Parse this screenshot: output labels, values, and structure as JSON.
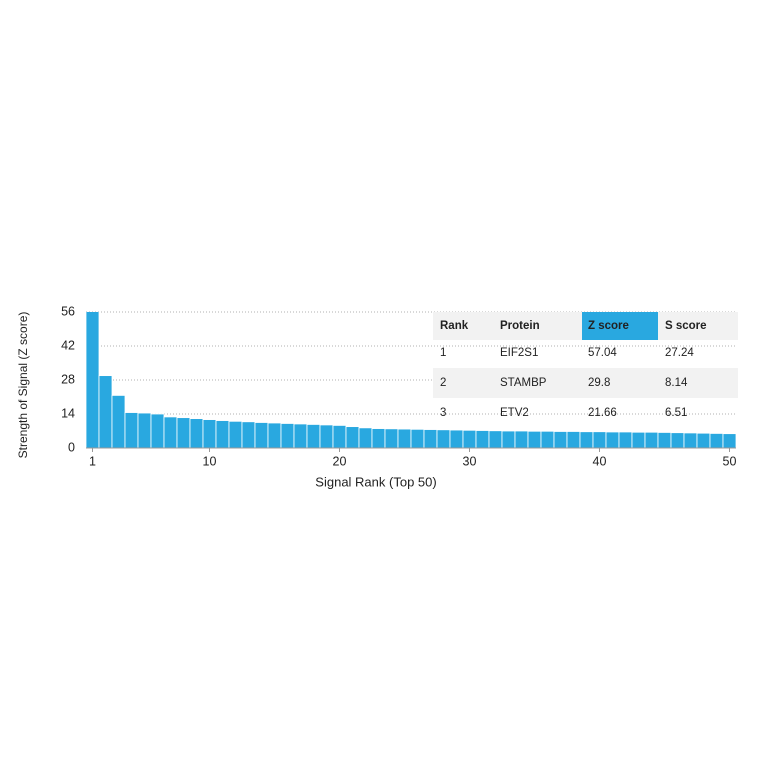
{
  "chart_data": {
    "type": "bar",
    "x": [
      1,
      2,
      3,
      4,
      5,
      6,
      7,
      8,
      9,
      10,
      11,
      12,
      13,
      14,
      15,
      16,
      17,
      18,
      19,
      20,
      21,
      22,
      23,
      24,
      25,
      26,
      27,
      28,
      29,
      30,
      31,
      32,
      33,
      34,
      35,
      36,
      37,
      38,
      39,
      40,
      41,
      42,
      43,
      44,
      45,
      46,
      47,
      48,
      49,
      50
    ],
    "values": [
      57.04,
      29.8,
      21.66,
      14.6,
      14.4,
      14.0,
      12.8,
      12.5,
      12.1,
      11.7,
      11.3,
      11.0,
      10.8,
      10.5,
      10.3,
      10.1,
      9.9,
      9.7,
      9.5,
      9.3,
      8.8,
      8.3,
      8.0,
      7.9,
      7.8,
      7.7,
      7.6,
      7.5,
      7.4,
      7.3,
      7.2,
      7.1,
      7.0,
      7.0,
      6.9,
      6.9,
      6.8,
      6.8,
      6.7,
      6.7,
      6.6,
      6.6,
      6.5,
      6.5,
      6.4,
      6.3,
      6.2,
      6.1,
      6.0,
      5.9
    ],
    "color": "#29a8e0",
    "xlabel": "Signal Rank (Top 50)",
    "ylabel": "Strength of Signal (Z score)",
    "xlim": [
      0.5,
      50.5
    ],
    "xticks": [
      1,
      10,
      20,
      30,
      40,
      50
    ],
    "ylim": [
      0,
      56
    ],
    "yticks": [
      0,
      14,
      28,
      42,
      56
    ],
    "grid": true
  },
  "table": {
    "header": [
      "Rank",
      "Protein",
      "Z score",
      "S score"
    ],
    "rows": [
      [
        1,
        "EIF2S1",
        57.04,
        27.24
      ],
      [
        2,
        "STAMBP",
        29.8,
        8.14
      ],
      [
        3,
        "ETV2",
        21.66,
        6.51
      ]
    ]
  }
}
